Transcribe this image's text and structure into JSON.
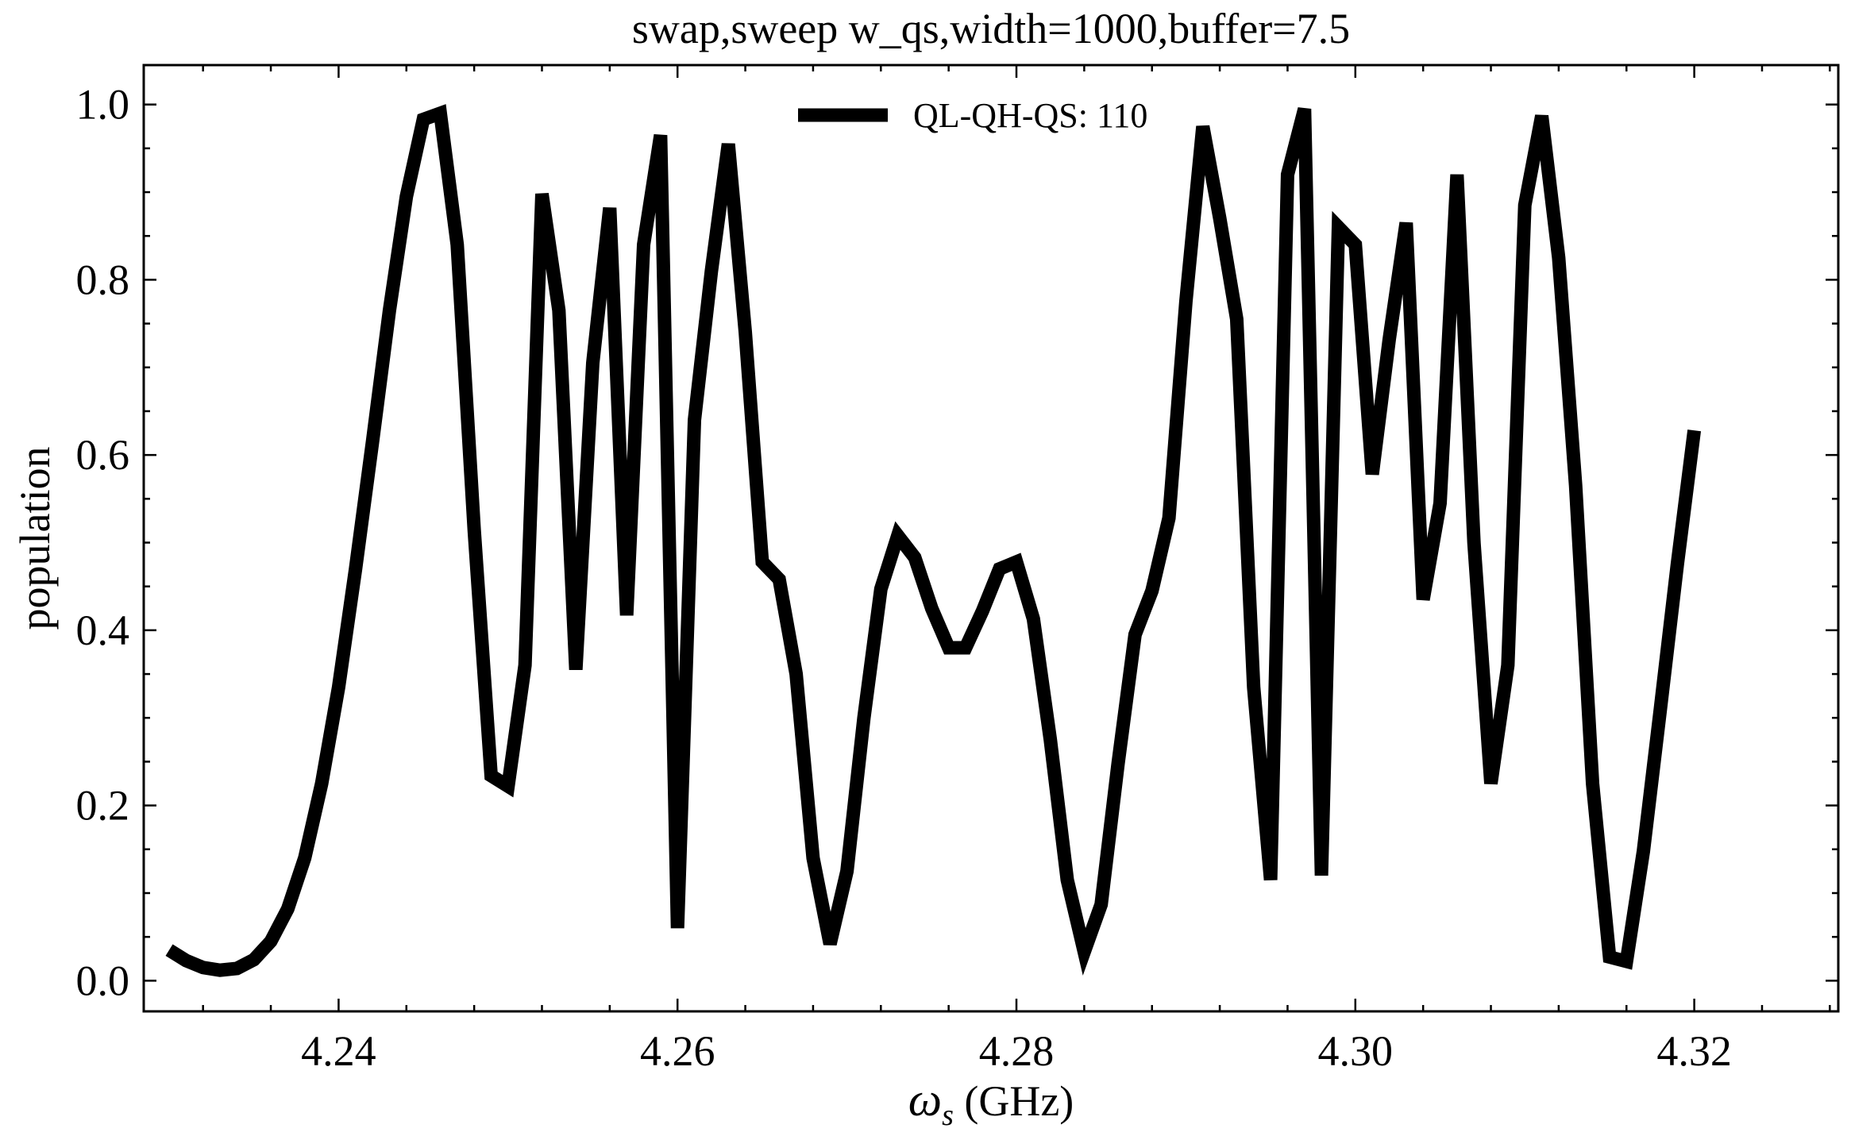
{
  "chart_data": {
    "type": "line",
    "title": "swap,sweep w_qs,width=1000,buffer=7.5",
    "xlabel_symbol": "ω",
    "xlabel_subscript": "s",
    "xlabel_unit": "(GHz)",
    "ylabel": "population",
    "xlim": [
      4.2285,
      4.3285
    ],
    "ylim": [
      -0.035,
      1.045
    ],
    "x_ticks": [
      4.24,
      4.26,
      4.28,
      4.3,
      4.32
    ],
    "x_tick_labels": [
      "4.24",
      "4.26",
      "4.28",
      "4.30",
      "4.32"
    ],
    "y_ticks": [
      0.0,
      0.2,
      0.4,
      0.6,
      0.8,
      1.0
    ],
    "y_tick_labels": [
      "0.0",
      "0.2",
      "0.4",
      "0.6",
      "0.8",
      "1.0"
    ],
    "grid": false,
    "legend_position": "top-center",
    "line_color": "#000000",
    "series": [
      {
        "name": "QL-QH-QS: 110",
        "x": [
          4.23,
          4.231,
          4.232,
          4.233,
          4.234,
          4.235,
          4.236,
          4.237,
          4.238,
          4.239,
          4.24,
          4.241,
          4.242,
          4.243,
          4.244,
          4.245,
          4.246,
          4.247,
          4.248,
          4.249,
          4.25,
          4.251,
          4.252,
          4.253,
          4.254,
          4.255,
          4.256,
          4.257,
          4.258,
          4.259,
          4.26,
          4.261,
          4.262,
          4.263,
          4.264,
          4.265,
          4.266,
          4.267,
          4.268,
          4.269,
          4.27,
          4.271,
          4.272,
          4.273,
          4.274,
          4.275,
          4.276,
          4.277,
          4.278,
          4.279,
          4.28,
          4.281,
          4.282,
          4.283,
          4.284,
          4.285,
          4.286,
          4.287,
          4.288,
          4.289,
          4.29,
          4.291,
          4.292,
          4.293,
          4.294,
          4.295,
          4.296,
          4.297,
          4.298,
          4.299,
          4.3,
          4.301,
          4.302,
          4.303,
          4.304,
          4.305,
          4.306,
          4.307,
          4.308,
          4.309,
          4.31,
          4.311,
          4.312,
          4.313,
          4.314,
          4.315,
          4.316,
          4.317,
          4.318,
          4.319,
          4.32
        ],
        "y": [
          0.035,
          0.023,
          0.015,
          0.012,
          0.014,
          0.024,
          0.045,
          0.082,
          0.14,
          0.225,
          0.335,
          0.47,
          0.615,
          0.765,
          0.895,
          0.983,
          0.99,
          0.84,
          0.515,
          0.234,
          0.222,
          0.36,
          0.898,
          0.765,
          0.355,
          0.705,
          0.882,
          0.417,
          0.84,
          0.965,
          0.06,
          0.64,
          0.81,
          0.955,
          0.74,
          0.478,
          0.458,
          0.35,
          0.14,
          0.042,
          0.125,
          0.3,
          0.447,
          0.508,
          0.483,
          0.425,
          0.38,
          0.38,
          0.422,
          0.47,
          0.478,
          0.413,
          0.275,
          0.115,
          0.033,
          0.087,
          0.248,
          0.395,
          0.445,
          0.528,
          0.775,
          0.975,
          0.87,
          0.755,
          0.335,
          0.115,
          0.92,
          0.995,
          0.12,
          0.86,
          0.84,
          0.578,
          0.732,
          0.865,
          0.435,
          0.545,
          0.92,
          0.5,
          0.225,
          0.36,
          0.885,
          0.987,
          0.825,
          0.565,
          0.225,
          0.027,
          0.022,
          0.148,
          0.31,
          0.475,
          0.628
        ]
      }
    ]
  }
}
